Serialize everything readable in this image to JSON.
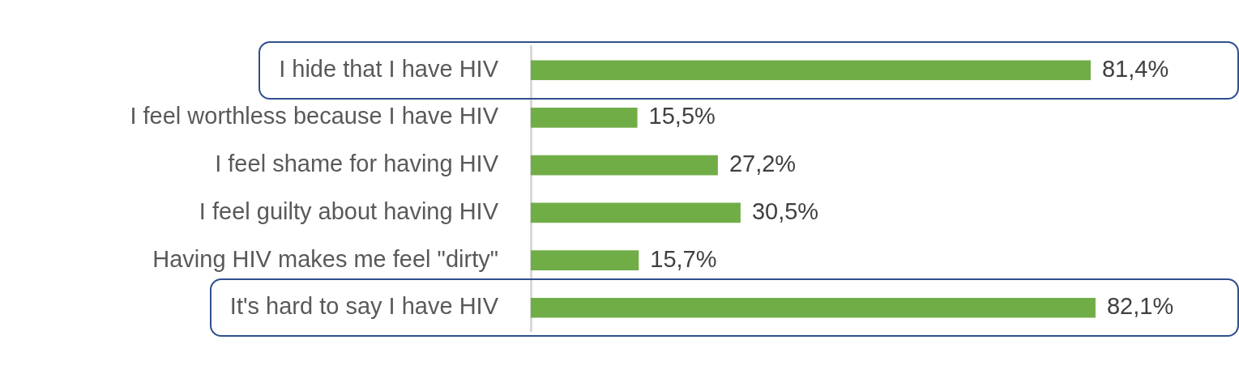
{
  "chart_data": {
    "type": "bar",
    "orientation": "horizontal",
    "categories": [
      "I hide that I have HIV",
      "I feel worthless because I have HIV",
      "I feel shame for having HIV",
      "I feel guilty about having HIV",
      "Having HIV makes me feel \"dirty\"",
      "It's hard to say I have HIV"
    ],
    "values": [
      81.4,
      15.5,
      27.2,
      30.5,
      15.7,
      82.1
    ],
    "value_labels": [
      "81,4%",
      "15,5%",
      "27,2%",
      "30,5%",
      "15,7%",
      "82,1%"
    ],
    "color": "#70ad47",
    "tick_labels": "y",
    "legend": false
  }
}
